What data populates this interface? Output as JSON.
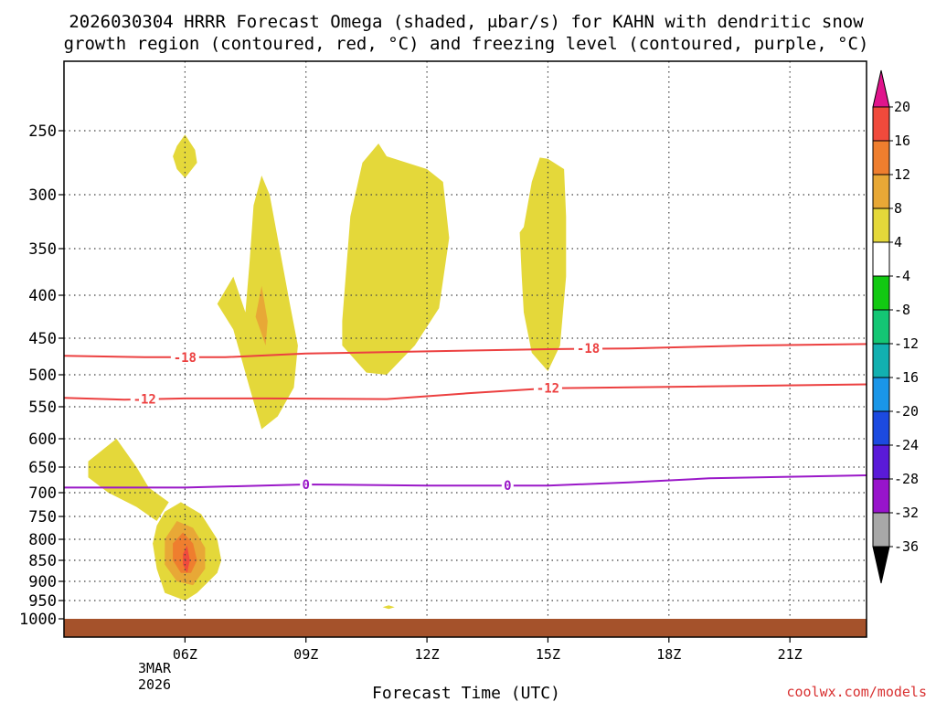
{
  "chart_data": {
    "type": "heatmap",
    "title_line1": "2026030304 HRRR Forecast Omega (shaded, μbar/s) for KAHN with dendritic snow",
    "title_line2": "growth region (contoured, red, °C) and freezing level (contoured, purple, °C)",
    "xlabel": "Forecast Time (UTC)",
    "credit": "coolwx.com/models",
    "x_ticks": [
      {
        "hour": 6,
        "label": "06Z"
      },
      {
        "hour": 9,
        "label": "09Z"
      },
      {
        "hour": 12,
        "label": "12Z"
      },
      {
        "hour": 15,
        "label": "15Z"
      },
      {
        "hour": 18,
        "label": "18Z"
      },
      {
        "hour": 21,
        "label": "21Z"
      }
    ],
    "date_label_1": "3MAR",
    "date_label_2": "2026",
    "x_range": [
      3,
      22.9
    ],
    "y_ticks": [
      {
        "p": 250,
        "label": "250"
      },
      {
        "p": 300,
        "label": "300"
      },
      {
        "p": 350,
        "label": "350"
      },
      {
        "p": 400,
        "label": "400"
      },
      {
        "p": 450,
        "label": "450"
      },
      {
        "p": 500,
        "label": "500"
      },
      {
        "p": 550,
        "label": "550"
      },
      {
        "p": 600,
        "label": "600"
      },
      {
        "p": 650,
        "label": "650"
      },
      {
        "p": 700,
        "label": "700"
      },
      {
        "p": 750,
        "label": "750"
      },
      {
        "p": 800,
        "label": "800"
      },
      {
        "p": 850,
        "label": "850"
      },
      {
        "p": 900,
        "label": "900"
      },
      {
        "p": 950,
        "label": "950"
      },
      {
        "p": 1000,
        "label": "1000"
      }
    ],
    "y_range_hpa": [
      200,
      1018
    ],
    "colorbar": {
      "labels": [
        "20",
        "16",
        "12",
        "8",
        "4",
        "-4",
        "-8",
        "-12",
        "-16",
        "-20",
        "-24",
        "-28",
        "-32",
        "-36"
      ],
      "colors": [
        "#ec1c5c",
        "#f04a3c",
        "#ef7e2e",
        "#e8a836",
        "#e4d83a",
        "#ffffff",
        "#12c912",
        "#14c674",
        "#12b0b0",
        "#1a96e8",
        "#1c4ae0",
        "#5a1ad8",
        "#9814cc",
        "#a8a8a8"
      ],
      "top_arrow_color": "#e0148c",
      "bottom_arrow_color": "#000000"
    },
    "contours": [
      {
        "name": "-18",
        "color": "#ec4040",
        "label": "-18",
        "points": [
          [
            3,
            474
          ],
          [
            5,
            476
          ],
          [
            7,
            476
          ],
          [
            9,
            471
          ],
          [
            12,
            468
          ],
          [
            15,
            465
          ],
          [
            17,
            464
          ],
          [
            20,
            460
          ],
          [
            22.9,
            458
          ]
        ],
        "labels_at": [
          [
            6.0,
            476
          ],
          [
            16.0,
            464
          ]
        ]
      },
      {
        "name": "-12",
        "color": "#ec4040",
        "label": "-12",
        "points": [
          [
            3,
            536
          ],
          [
            4.5,
            539
          ],
          [
            6,
            537
          ],
          [
            8,
            537
          ],
          [
            11,
            538
          ],
          [
            13,
            529
          ],
          [
            15,
            521
          ],
          [
            18,
            519
          ],
          [
            22.9,
            515
          ]
        ],
        "labels_at": [
          [
            5.0,
            538
          ],
          [
            15.0,
            521
          ]
        ]
      },
      {
        "name": "0",
        "color": "#9a18c8",
        "label": "0",
        "points": [
          [
            3,
            690
          ],
          [
            6,
            690
          ],
          [
            9,
            684
          ],
          [
            12,
            686
          ],
          [
            15,
            686
          ],
          [
            17,
            680
          ],
          [
            19,
            672
          ],
          [
            22.9,
            666
          ]
        ],
        "labels_at": [
          [
            9.0,
            684
          ],
          [
            14.0,
            686
          ]
        ]
      }
    ],
    "shaded_regions": [
      {
        "name": "upward-4-8-a",
        "level": "4",
        "points": [
          [
            5.8,
            262
          ],
          [
            6.0,
            253
          ],
          [
            6.25,
            265
          ],
          [
            6.3,
            275
          ],
          [
            6.0,
            287
          ],
          [
            5.8,
            280
          ],
          [
            5.7,
            270
          ]
        ]
      },
      {
        "name": "upward-4-8-b",
        "level": "4",
        "points": [
          [
            7.5,
            420
          ],
          [
            7.6,
            365
          ],
          [
            7.7,
            310
          ],
          [
            7.9,
            285
          ],
          [
            8.1,
            300
          ],
          [
            8.6,
            410
          ],
          [
            8.8,
            460
          ],
          [
            8.7,
            520
          ],
          [
            8.3,
            565
          ],
          [
            7.9,
            585
          ],
          [
            7.6,
            520
          ],
          [
            7.2,
            440
          ],
          [
            6.8,
            410
          ],
          [
            7.2,
            380
          ]
        ]
      },
      {
        "name": "upward-8-12-b",
        "level": "8",
        "points": [
          [
            7.75,
            425
          ],
          [
            7.9,
            390
          ],
          [
            8.05,
            430
          ],
          [
            8.0,
            460
          ],
          [
            7.9,
            445
          ]
        ]
      },
      {
        "name": "upward-4-8-c",
        "level": "4",
        "points": [
          [
            9.9,
            430
          ],
          [
            10.1,
            320
          ],
          [
            10.4,
            275
          ],
          [
            10.8,
            260
          ],
          [
            11.0,
            270
          ],
          [
            12.0,
            280
          ],
          [
            12.4,
            290
          ],
          [
            12.55,
            340
          ],
          [
            12.3,
            415
          ],
          [
            11.7,
            460
          ],
          [
            11.0,
            500
          ],
          [
            10.5,
            497
          ],
          [
            9.9,
            460
          ]
        ]
      },
      {
        "name": "upward-4-8-d",
        "level": "4",
        "points": [
          [
            14.4,
            330
          ],
          [
            14.6,
            290
          ],
          [
            14.8,
            271
          ],
          [
            15.0,
            272
          ],
          [
            15.4,
            280
          ],
          [
            15.45,
            320
          ],
          [
            15.45,
            380
          ],
          [
            15.3,
            460
          ],
          [
            15.0,
            495
          ],
          [
            14.6,
            470
          ],
          [
            14.4,
            420
          ],
          [
            14.35,
            380
          ],
          [
            14.3,
            335
          ]
        ]
      },
      {
        "name": "upward-4-8-e",
        "level": "4",
        "points": [
          [
            3.6,
            640
          ],
          [
            4.3,
            600
          ],
          [
            4.5,
            620
          ],
          [
            4.8,
            650
          ],
          [
            5.1,
            690
          ],
          [
            5.6,
            720
          ],
          [
            5.3,
            760
          ],
          [
            4.8,
            730
          ],
          [
            4.1,
            700
          ],
          [
            3.6,
            670
          ]
        ]
      },
      {
        "name": "upward-4-8-f",
        "level": "4",
        "points": [
          [
            5.5,
            740
          ],
          [
            5.9,
            720
          ],
          [
            6.4,
            745
          ],
          [
            6.8,
            800
          ],
          [
            6.9,
            850
          ],
          [
            6.8,
            880
          ],
          [
            6.3,
            930
          ],
          [
            6.0,
            950
          ],
          [
            5.5,
            930
          ],
          [
            5.3,
            870
          ],
          [
            5.2,
            810
          ],
          [
            5.3,
            770
          ]
        ]
      },
      {
        "name": "upward-8-12-f",
        "level": "8",
        "points": [
          [
            5.5,
            800
          ],
          [
            5.8,
            760
          ],
          [
            6.2,
            775
          ],
          [
            6.5,
            820
          ],
          [
            6.5,
            870
          ],
          [
            6.2,
            910
          ],
          [
            5.8,
            900
          ],
          [
            5.5,
            860
          ]
        ]
      },
      {
        "name": "upward-12-16-f",
        "level": "12",
        "points": [
          [
            5.7,
            810
          ],
          [
            5.95,
            785
          ],
          [
            6.2,
            810
          ],
          [
            6.3,
            850
          ],
          [
            6.15,
            880
          ],
          [
            5.9,
            880
          ],
          [
            5.7,
            850
          ]
        ]
      },
      {
        "name": "upward-16-20-f",
        "level": "16",
        "points": [
          [
            5.95,
            835
          ],
          [
            6.05,
            815
          ],
          [
            6.12,
            850
          ],
          [
            6.05,
            880
          ],
          [
            5.95,
            860
          ]
        ]
      },
      {
        "name": "upward-4-8-g",
        "level": "4",
        "points": [
          [
            10.9,
            968
          ],
          [
            11.05,
            963
          ],
          [
            11.2,
            968
          ],
          [
            11.05,
            973
          ]
        ]
      },
      {
        "name": "downward-4-8-a",
        "level": "-4",
        "points": [
          [
            4.6,
            920
          ],
          [
            4.75,
            905
          ],
          [
            4.9,
            925
          ],
          [
            4.85,
            950
          ],
          [
            4.7,
            955
          ],
          [
            4.6,
            940
          ]
        ]
      },
      {
        "name": "downward-4-8-b",
        "level": "-4",
        "points": [
          [
            8.75,
            680
          ],
          [
            8.9,
            650
          ],
          [
            9.0,
            628
          ],
          [
            9.15,
            660
          ],
          [
            9.1,
            750
          ],
          [
            9.15,
            800
          ],
          [
            9.0,
            830
          ],
          [
            8.8,
            810
          ],
          [
            8.7,
            760
          ]
        ]
      },
      {
        "name": "downward-4-8-c",
        "level": "-4",
        "points": [
          [
            10.8,
            850
          ],
          [
            11.0,
            822
          ],
          [
            11.2,
            850
          ],
          [
            11.0,
            885
          ],
          [
            10.85,
            870
          ]
        ]
      },
      {
        "name": "downward-4-8-d",
        "level": "-4",
        "points": [
          [
            11.4,
            650
          ],
          [
            11.7,
            615
          ],
          [
            12.0,
            598
          ],
          [
            12.4,
            620
          ],
          [
            12.6,
            660
          ],
          [
            12.3,
            700
          ],
          [
            12.0,
            720
          ],
          [
            11.6,
            705
          ],
          [
            11.4,
            675
          ]
        ]
      },
      {
        "name": "downward-4-8-e",
        "level": "-4",
        "points": [
          [
            19.7,
            330
          ],
          [
            19.9,
            310
          ],
          [
            20.25,
            340
          ],
          [
            20.0,
            370
          ],
          [
            19.85,
            385
          ],
          [
            19.7,
            360
          ]
        ]
      }
    ]
  }
}
